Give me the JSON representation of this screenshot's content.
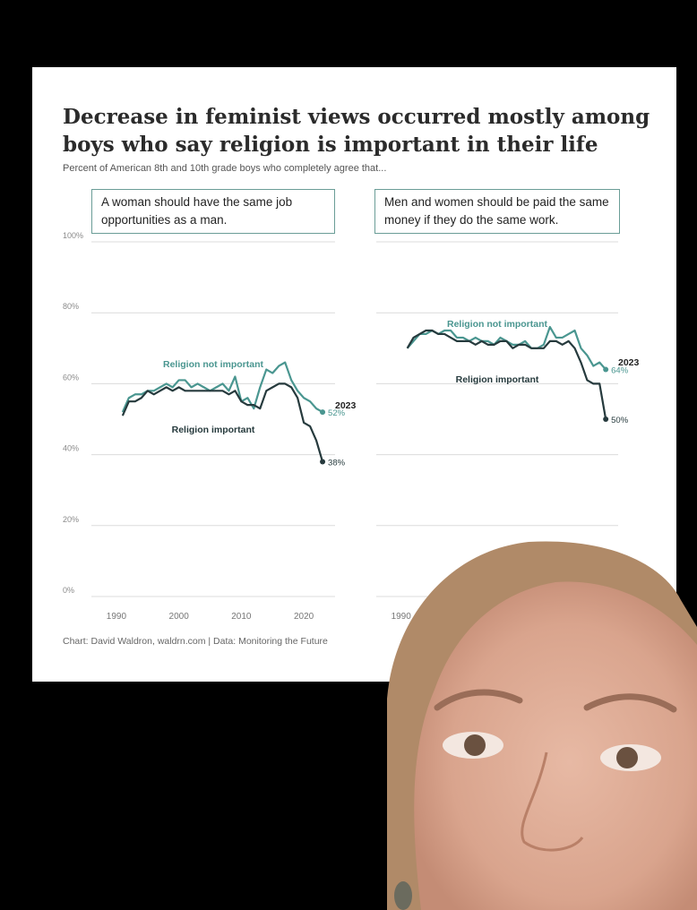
{
  "title": "Decrease in feminist views occurred mostly among boys who say religion is important in their life",
  "subtitle": "Percent of American 8th and 10th grade boys who completely agree that...",
  "footer": "Chart: David Waldron, waldrn.com | Data: Monitoring the Future",
  "colors": {
    "not_important": "#4a9690",
    "important": "#263a3d",
    "grid": "#dcdcdc",
    "box_border": "#6a9d97"
  },
  "chart_data": [
    {
      "type": "line",
      "panel_title": "A woman should have the same job opportunities as a man.",
      "y_ticks": [
        "100%",
        "80%",
        "60%",
        "40%",
        "20%",
        "0%"
      ],
      "x_ticks": [
        "1990",
        "2000",
        "2010",
        "2020"
      ],
      "xlim": [
        1986,
        2025
      ],
      "ylim": [
        0,
        100
      ],
      "end_year_label": "2023",
      "series": [
        {
          "name": "Religion not important",
          "label": "Religion not important",
          "end_label": "52%",
          "x": [
            1991,
            1992,
            1993,
            1994,
            1995,
            1996,
            1997,
            1998,
            1999,
            2000,
            2001,
            2002,
            2003,
            2004,
            2005,
            2006,
            2007,
            2008,
            2009,
            2010,
            2011,
            2012,
            2013,
            2014,
            2015,
            2016,
            2017,
            2018,
            2019,
            2020,
            2021,
            2022,
            2023
          ],
          "values": [
            52,
            56,
            57,
            57,
            58,
            58,
            59,
            60,
            59,
            61,
            61,
            59,
            60,
            59,
            58,
            59,
            60,
            58,
            62,
            55,
            56,
            53,
            59,
            64,
            63,
            65,
            66,
            61,
            58,
            56,
            55,
            53,
            52
          ]
        },
        {
          "name": "Religion important",
          "label": "Religion important",
          "end_label": "38%",
          "x": [
            1991,
            1992,
            1993,
            1994,
            1995,
            1996,
            1997,
            1998,
            1999,
            2000,
            2001,
            2002,
            2003,
            2004,
            2005,
            2006,
            2007,
            2008,
            2009,
            2010,
            2011,
            2012,
            2013,
            2014,
            2015,
            2016,
            2017,
            2018,
            2019,
            2020,
            2021,
            2022,
            2023
          ],
          "values": [
            51,
            55,
            55,
            56,
            58,
            57,
            58,
            59,
            58,
            59,
            58,
            58,
            58,
            58,
            58,
            58,
            58,
            57,
            58,
            55,
            54,
            54,
            53,
            58,
            59,
            60,
            60,
            59,
            56,
            49,
            48,
            44,
            38
          ]
        }
      ]
    },
    {
      "type": "line",
      "panel_title": "Men and women should be paid the same money if they do the same work.",
      "y_ticks": [
        "100%",
        "80%",
        "60%",
        "40%",
        "20%",
        "0%"
      ],
      "x_ticks": [
        "1990"
      ],
      "xlim": [
        1986,
        2025
      ],
      "ylim": [
        0,
        100
      ],
      "end_year_label": "2023",
      "series": [
        {
          "name": "Religion not important",
          "label": "Religion not important",
          "end_label": "64%",
          "x": [
            1991,
            1992,
            1993,
            1994,
            1995,
            1996,
            1997,
            1998,
            1999,
            2000,
            2001,
            2002,
            2003,
            2004,
            2005,
            2006,
            2007,
            2008,
            2009,
            2010,
            2011,
            2012,
            2013,
            2014,
            2015,
            2016,
            2017,
            2018,
            2019,
            2020,
            2021,
            2022,
            2023
          ],
          "values": [
            70,
            72,
            74,
            74,
            75,
            74,
            75,
            75,
            73,
            73,
            72,
            73,
            72,
            72,
            71,
            73,
            72,
            71,
            71,
            72,
            70,
            70,
            71,
            76,
            73,
            73,
            74,
            75,
            70,
            68,
            65,
            66,
            64
          ]
        },
        {
          "name": "Religion important",
          "label": "Religion important",
          "end_label": "50%",
          "x": [
            1991,
            1992,
            1993,
            1994,
            1995,
            1996,
            1997,
            1998,
            1999,
            2000,
            2001,
            2002,
            2003,
            2004,
            2005,
            2006,
            2007,
            2008,
            2009,
            2010,
            2011,
            2012,
            2013,
            2014,
            2015,
            2016,
            2017,
            2018,
            2019,
            2020,
            2021,
            2022,
            2023
          ],
          "values": [
            70,
            73,
            74,
            75,
            75,
            74,
            74,
            73,
            72,
            72,
            72,
            71,
            72,
            71,
            71,
            72,
            72,
            70,
            71,
            71,
            70,
            70,
            70,
            72,
            72,
            71,
            72,
            70,
            66,
            61,
            60,
            60,
            50
          ]
        }
      ]
    }
  ]
}
